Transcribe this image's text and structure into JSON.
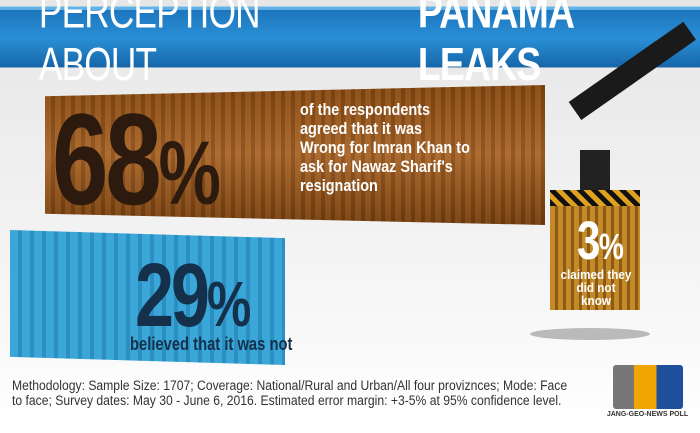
{
  "header": {
    "title_light": "PERCEPTION ABOUT",
    "title_bold": "PANAMA LEAKS"
  },
  "stats": [
    {
      "value": "68",
      "unit": "%",
      "text": "of the respondents agreed that it was Wrong for Imran Khan to ask for Nawaz Sharif's resignation",
      "color": "#2b1a0d"
    },
    {
      "value": "29",
      "unit": "%",
      "text": "believed that it was not",
      "color": "#14304a"
    },
    {
      "value": "3",
      "unit": "%",
      "text": "claimed they did not know",
      "color": "#ffffff"
    }
  ],
  "footer": {
    "methodology": "Methodology: Sample Size: 1707; Coverage: National/Rural and Urban/All four proviznces; Mode: Face to face; Survey dates: May 30 - June 6, 2016. Estimated error margin: +3-5% at 95% confidence level."
  },
  "logo": {
    "mark": "JGN",
    "text": "JANG-GEO-NEWS POLL"
  },
  "colors": {
    "banner": "#1c75bc",
    "brown_container": "#a65f1e",
    "blue_container": "#3aa7d8",
    "yellow_container": "#c48a28"
  }
}
